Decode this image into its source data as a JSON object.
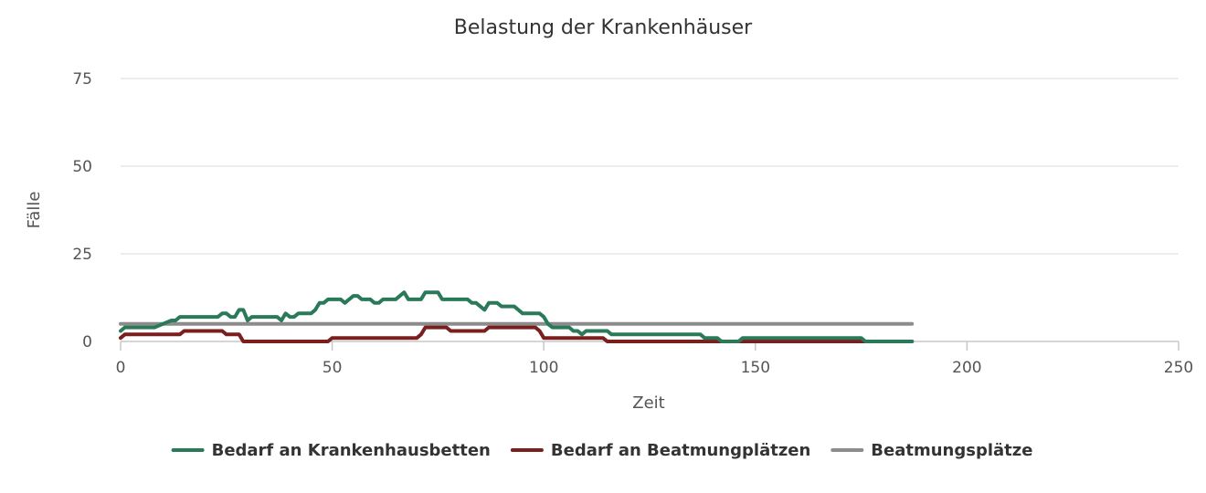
{
  "chart_data": {
    "type": "line",
    "title": "Belastung der Krankenhäuser",
    "xlabel": "Zeit",
    "ylabel": "Fälle",
    "xlim": [
      0,
      250
    ],
    "ylim": [
      0,
      75
    ],
    "x_ticks": [
      "0",
      "50",
      "100",
      "150",
      "200",
      "250"
    ],
    "y_ticks": [
      "0",
      "25",
      "50",
      "75"
    ],
    "grid": true,
    "legend_position": "bottom",
    "series": [
      {
        "name": "Bedarf an Krankenhausbetten",
        "color": "#2a7a5a",
        "points": [
          [
            0,
            3
          ],
          [
            1,
            4
          ],
          [
            8,
            4
          ],
          [
            10,
            5
          ],
          [
            12,
            6
          ],
          [
            13,
            6
          ],
          [
            14,
            7
          ],
          [
            23,
            7
          ],
          [
            24,
            8
          ],
          [
            25,
            8
          ],
          [
            26,
            7
          ],
          [
            27,
            7
          ],
          [
            28,
            9
          ],
          [
            29,
            9
          ],
          [
            30,
            6
          ],
          [
            31,
            7
          ],
          [
            37,
            7
          ],
          [
            38,
            6
          ],
          [
            39,
            8
          ],
          [
            40,
            7
          ],
          [
            41,
            7
          ],
          [
            42,
            8
          ],
          [
            45,
            8
          ],
          [
            46,
            9
          ],
          [
            47,
            11
          ],
          [
            48,
            11
          ],
          [
            49,
            12
          ],
          [
            52,
            12
          ],
          [
            53,
            11
          ],
          [
            54,
            12
          ],
          [
            55,
            13
          ],
          [
            56,
            13
          ],
          [
            57,
            12
          ],
          [
            59,
            12
          ],
          [
            60,
            11
          ],
          [
            61,
            11
          ],
          [
            62,
            12
          ],
          [
            65,
            12
          ],
          [
            66,
            13
          ],
          [
            67,
            14
          ],
          [
            68,
            12
          ],
          [
            71,
            12
          ],
          [
            72,
            14
          ],
          [
            75,
            14
          ],
          [
            76,
            12
          ],
          [
            82,
            12
          ],
          [
            83,
            11
          ],
          [
            84,
            11
          ],
          [
            85,
            10
          ],
          [
            86,
            9
          ],
          [
            87,
            11
          ],
          [
            89,
            11
          ],
          [
            90,
            10
          ],
          [
            93,
            10
          ],
          [
            94,
            9
          ],
          [
            95,
            8
          ],
          [
            99,
            8
          ],
          [
            100,
            7
          ],
          [
            101,
            5
          ],
          [
            102,
            4
          ],
          [
            106,
            4
          ],
          [
            107,
            3
          ],
          [
            108,
            3
          ],
          [
            109,
            2
          ],
          [
            110,
            3
          ],
          [
            115,
            3
          ],
          [
            116,
            2
          ],
          [
            137,
            2
          ],
          [
            138,
            1
          ],
          [
            141,
            1
          ],
          [
            142,
            0
          ],
          [
            146,
            0
          ],
          [
            147,
            1
          ],
          [
            175,
            1
          ],
          [
            176,
            0
          ],
          [
            187,
            0
          ]
        ]
      },
      {
        "name": "Bedarf an Beatmungplätzen",
        "color": "#7a1e1e",
        "points": [
          [
            0,
            1
          ],
          [
            1,
            2
          ],
          [
            14,
            2
          ],
          [
            15,
            3
          ],
          [
            24,
            3
          ],
          [
            25,
            2
          ],
          [
            28,
            2
          ],
          [
            29,
            0
          ],
          [
            49,
            0
          ],
          [
            50,
            1
          ],
          [
            70,
            1
          ],
          [
            71,
            2
          ],
          [
            72,
            4
          ],
          [
            77,
            4
          ],
          [
            78,
            3
          ],
          [
            86,
            3
          ],
          [
            87,
            4
          ],
          [
            98,
            4
          ],
          [
            99,
            3
          ],
          [
            100,
            1
          ],
          [
            114,
            1
          ],
          [
            115,
            0
          ],
          [
            187,
            0
          ]
        ]
      },
      {
        "name": "Beatmungsplätze",
        "color": "#8c8c8c",
        "points": [
          [
            0,
            5
          ],
          [
            187,
            5
          ]
        ]
      }
    ]
  }
}
